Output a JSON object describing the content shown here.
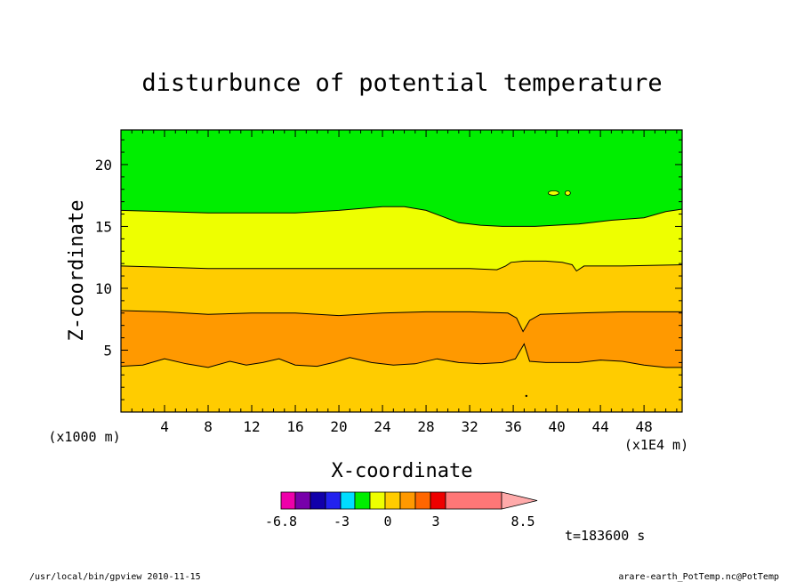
{
  "chart_data": {
    "type": "contour",
    "title": "disturbunce of potential temperature",
    "xlabel": "X-coordinate",
    "ylabel": "Z-coordinate",
    "x_unit_note": "(x1E4 m)",
    "z_unit_note": "(x1000 m)",
    "xlim": [
      0,
      51.5
    ],
    "ylim": [
      0,
      22.8
    ],
    "x_ticks": [
      4,
      8,
      12,
      16,
      20,
      24,
      28,
      32,
      36,
      40,
      44,
      48
    ],
    "y_ticks": [
      5,
      10,
      15,
      20
    ],
    "x_tick_labels": [
      "4",
      "8",
      "12",
      "16",
      "20",
      "24",
      "28",
      "32",
      "36",
      "40",
      "44",
      "48"
    ],
    "y_tick_labels": [
      "5",
      "10",
      "15",
      "20"
    ],
    "bands": [
      {
        "color": "#ffcc00",
        "range": "0 to 1.5 (bottom)"
      },
      {
        "color": "#ff9900",
        "range": "1.5 to 3"
      },
      {
        "color": "#ffcc00",
        "range": "0 to 1.5"
      },
      {
        "color": "#eeff00",
        "range": "-1.5 to 0"
      },
      {
        "color": "#00ee00",
        "range": "-3 to -1.5 (top)"
      }
    ],
    "contours": [
      {
        "name": "c1",
        "points": [
          [
            0,
            3.7
          ],
          [
            2,
            3.8
          ],
          [
            4,
            4.3
          ],
          [
            6,
            3.9
          ],
          [
            8,
            3.6
          ],
          [
            10,
            4.1
          ],
          [
            11.5,
            3.8
          ],
          [
            13,
            4.0
          ],
          [
            14.5,
            4.3
          ],
          [
            16,
            3.8
          ],
          [
            18,
            3.7
          ],
          [
            19.5,
            4.0
          ],
          [
            21,
            4.4
          ],
          [
            23,
            4.0
          ],
          [
            25,
            3.8
          ],
          [
            27,
            3.9
          ],
          [
            29,
            4.3
          ],
          [
            31,
            4.0
          ],
          [
            33,
            3.9
          ],
          [
            35,
            4.0
          ],
          [
            36.2,
            4.3
          ],
          [
            37.0,
            5.5
          ],
          [
            37.5,
            4.1
          ],
          [
            39,
            4.0
          ],
          [
            42,
            4.0
          ],
          [
            44,
            4.2
          ],
          [
            46,
            4.1
          ],
          [
            48,
            3.8
          ],
          [
            50,
            3.6
          ],
          [
            51.5,
            3.6
          ]
        ]
      },
      {
        "name": "c2",
        "points": [
          [
            0,
            8.2
          ],
          [
            4,
            8.1
          ],
          [
            8,
            7.9
          ],
          [
            12,
            8.0
          ],
          [
            16,
            8.0
          ],
          [
            20,
            7.8
          ],
          [
            24,
            8.0
          ],
          [
            28,
            8.1
          ],
          [
            32,
            8.1
          ],
          [
            35.5,
            8.0
          ],
          [
            36.3,
            7.6
          ],
          [
            36.9,
            6.5
          ],
          [
            37.5,
            7.4
          ],
          [
            38.5,
            7.9
          ],
          [
            42,
            8.0
          ],
          [
            46,
            8.1
          ],
          [
            51.5,
            8.1
          ]
        ]
      },
      {
        "name": "c3",
        "points": [
          [
            0,
            11.8
          ],
          [
            4,
            11.7
          ],
          [
            8,
            11.6
          ],
          [
            12,
            11.6
          ],
          [
            16,
            11.6
          ],
          [
            20,
            11.6
          ],
          [
            24,
            11.6
          ],
          [
            28,
            11.6
          ],
          [
            32,
            11.6
          ],
          [
            34.5,
            11.5
          ],
          [
            35.3,
            11.8
          ],
          [
            35.8,
            12.1
          ],
          [
            37,
            12.2
          ],
          [
            39,
            12.2
          ],
          [
            40.5,
            12.1
          ],
          [
            41.4,
            11.9
          ],
          [
            41.8,
            11.4
          ],
          [
            42.5,
            11.8
          ],
          [
            46,
            11.8
          ],
          [
            51.5,
            11.9
          ]
        ]
      },
      {
        "name": "c4",
        "points": [
          [
            0,
            16.3
          ],
          [
            4,
            16.2
          ],
          [
            8,
            16.1
          ],
          [
            12,
            16.1
          ],
          [
            16,
            16.1
          ],
          [
            20,
            16.3
          ],
          [
            24,
            16.6
          ],
          [
            26,
            16.6
          ],
          [
            28,
            16.3
          ],
          [
            29.5,
            15.8
          ],
          [
            31,
            15.3
          ],
          [
            33,
            15.1
          ],
          [
            35,
            15.0
          ],
          [
            38,
            15.0
          ],
          [
            42,
            15.2
          ],
          [
            45,
            15.5
          ],
          [
            48,
            15.7
          ],
          [
            50,
            16.2
          ],
          [
            51.5,
            16.4
          ]
        ]
      }
    ],
    "features": [
      {
        "name": "blob-yellow",
        "x": 39.7,
        "y": 17.7,
        "color": "#eeff00"
      },
      {
        "name": "blob-yellow-small",
        "x": 41.0,
        "y": 17.7,
        "color": "#eeff00"
      },
      {
        "name": "dot-bottom",
        "x": 37.2,
        "y": 1.3,
        "color": "#000000"
      }
    ],
    "colorbar": {
      "colors": [
        "#ee00aa",
        "#7700aa",
        "#1100aa",
        "#2222ee",
        "#00ddff",
        "#00ee00",
        "#eeff00",
        "#ffcc00",
        "#ff9900",
        "#ff6600",
        "#ee0000",
        "#ff7777"
      ],
      "tip_color": "#ffaaaa",
      "labels": [
        "-6.8",
        "-3",
        "0",
        "3",
        "8.5"
      ]
    },
    "timestamp": "t=183600 s"
  },
  "footer": {
    "left": "/usr/local/bin/gpview  2010-11-15",
    "right": "arare-earth_PotTemp.nc@PotTemp"
  }
}
